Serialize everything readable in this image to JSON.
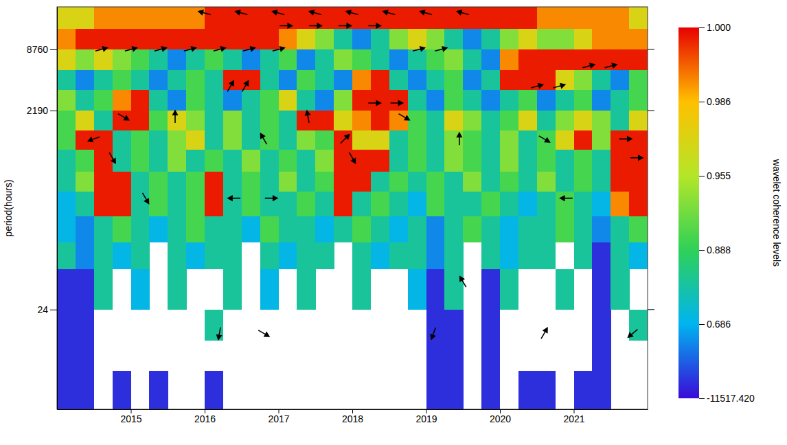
{
  "chart_data": {
    "type": "heatmap",
    "y_label": "period(hours)",
    "colorbar_label": "wavelet coherence levels",
    "log": "y",
    "xlim": [
      2014,
      2022
    ],
    "xticks": [
      2015,
      2016,
      2017,
      2018,
      2019,
      2020,
      2021
    ],
    "ylim": [
      2.5,
      23000
    ],
    "yticks": [
      24,
      2190,
      8760
    ],
    "x_edges": [
      2014,
      2014.25,
      2014.5,
      2014.75,
      2015,
      2015.25,
      2015.5,
      2015.75,
      2016,
      2016.25,
      2016.5,
      2016.75,
      2017,
      2017.25,
      2017.5,
      2017.75,
      2018,
      2018.25,
      2018.5,
      2018.75,
      2019,
      2019.25,
      2019.5,
      2019.75,
      2020,
      2020.25,
      2020.5,
      2020.75,
      2021,
      2021.25,
      2021.5,
      2021.75,
      2022
    ],
    "y_edges": [
      23000,
      14000,
      8760,
      5500,
      3500,
      2190,
      1400,
      900,
      550,
      350,
      200,
      110,
      60,
      24,
      12,
      6,
      2.5
    ],
    "cells": [
      [
        0.97,
        0.97,
        0.99,
        0.99,
        0.99,
        0.99,
        0.99,
        0.99,
        0.998,
        0.998,
        0.998,
        0.998,
        0.998,
        0.998,
        0.998,
        0.998,
        0.998,
        0.998,
        0.998,
        0.998,
        0.998,
        0.998,
        0.998,
        0.998,
        0.998,
        0.998,
        0.99,
        0.99,
        0.99,
        0.99,
        0.99,
        0.97
      ],
      [
        0.99,
        0.998,
        0.998,
        0.998,
        0.998,
        0.998,
        0.998,
        0.998,
        0.998,
        0.998,
        0.998,
        0.998,
        0.99,
        0.97,
        0.93,
        0.8,
        -3000,
        0.8,
        0.93,
        0.97,
        0.93,
        0.8,
        -3000,
        0.8,
        0.93,
        0.97,
        0.93,
        0.93,
        0.97,
        0.99,
        0.99,
        0.99
      ],
      [
        0.97,
        0.93,
        0.97,
        0.93,
        0.9,
        0.8,
        -3000,
        0.8,
        0.9,
        0.8,
        -3000,
        0.8,
        0.9,
        -3000,
        0.8,
        0.93,
        0.9,
        0.8,
        -3000,
        0.8,
        0.9,
        0.93,
        0.8,
        -3000,
        0.99,
        0.998,
        0.998,
        0.998,
        0.998,
        0.998,
        0.998,
        0.998
      ],
      [
        0.8,
        -3000,
        0.8,
        0.9,
        0.8,
        -3000,
        0.8,
        0.9,
        0.8,
        0.998,
        0.998,
        0.8,
        -3000,
        0.9,
        0.8,
        -3000,
        0.99,
        0.998,
        0.8,
        -3000,
        0.8,
        0.9,
        -3000,
        0.8,
        0.998,
        0.998,
        0.998,
        0.97,
        0.93,
        0.8,
        -3000,
        0.9
      ],
      [
        0.93,
        0.8,
        0.9,
        0.99,
        0.998,
        0.8,
        -3000,
        0.9,
        0.8,
        -3000,
        0.8,
        0.9,
        0.97,
        0.8,
        -3000,
        0.93,
        0.998,
        0.998,
        0.998,
        0.8,
        -3000,
        0.9,
        0.8,
        -3000,
        0.8,
        0.9,
        -3000,
        0.8,
        0.9,
        -3000,
        0.8,
        0.9
      ],
      [
        0.9,
        0.97,
        0.8,
        0.998,
        0.998,
        0.9,
        0.97,
        0.93,
        0.8,
        0.93,
        0.8,
        0.9,
        0.8,
        0.998,
        0.998,
        0.97,
        0.99,
        0.998,
        0.99,
        0.9,
        0.8,
        0.97,
        0.93,
        0.8,
        0.9,
        0.97,
        0.8,
        0.93,
        0.97,
        0.93,
        0.8,
        0.97
      ],
      [
        0.9,
        0.998,
        0.998,
        0.8,
        0.9,
        0.8,
        0.93,
        0.97,
        0.8,
        0.93,
        0.8,
        0.9,
        0.8,
        0.93,
        0.9,
        0.998,
        0.97,
        0.97,
        0.8,
        0.9,
        0.8,
        0.93,
        0.9,
        0.8,
        0.93,
        0.8,
        0.9,
        0.97,
        0.998,
        0.93,
        0.998,
        0.998
      ],
      [
        0.8,
        0.9,
        0.998,
        0.8,
        0.9,
        0.8,
        0.93,
        0.8,
        0.9,
        0.8,
        0.93,
        0.8,
        0.9,
        0.8,
        0.93,
        0.998,
        0.998,
        0.998,
        0.8,
        0.9,
        0.8,
        0.93,
        0.9,
        0.8,
        0.93,
        0.8,
        0.9,
        0.8,
        0.9,
        0.8,
        0.998,
        0.998
      ],
      [
        0.8,
        0.93,
        0.998,
        0.998,
        0.8,
        0.9,
        0.8,
        0.9,
        0.998,
        0.8,
        0.9,
        0.8,
        0.93,
        0.8,
        0.9,
        0.998,
        0.998,
        0.8,
        0.9,
        0.8,
        0.9,
        0.8,
        0.93,
        0.8,
        0.9,
        0.8,
        0.93,
        0.8,
        0.9,
        0.8,
        0.998,
        0.998
      ],
      [
        0.7,
        0.8,
        0.998,
        0.998,
        0.8,
        0.9,
        0.8,
        0.9,
        0.998,
        0.8,
        0.9,
        0.8,
        0.8,
        0.9,
        0.8,
        0.998,
        0.8,
        0.9,
        0.8,
        0.7,
        0.9,
        0.8,
        0.8,
        0.9,
        0.8,
        0.7,
        0.8,
        0.9,
        0.8,
        0.7,
        0.99,
        0.998
      ],
      [
        0.7,
        -3000,
        0.8,
        0.9,
        0.8,
        0.7,
        0.8,
        0.9,
        0.8,
        0.8,
        0.7,
        0.9,
        0.8,
        0.8,
        0.7,
        0.8,
        0.9,
        0.8,
        0.7,
        0.8,
        -3000,
        0.8,
        0.9,
        0.8,
        0.7,
        0.8,
        0.8,
        0.9,
        0.8,
        -3000,
        0.8,
        0.9
      ],
      [
        0.8,
        -3000,
        0.8,
        0.7,
        0.8,
        null,
        0.8,
        0.7,
        0.8,
        0.8,
        null,
        0.8,
        0.7,
        0.8,
        0.8,
        null,
        0.8,
        0.7,
        0.8,
        0.8,
        -3000,
        0.8,
        null,
        0.8,
        0.7,
        0.8,
        0.8,
        null,
        0.8,
        -9000,
        0.8,
        0.7
      ],
      [
        -9000,
        -9000,
        0.8,
        null,
        0.7,
        null,
        0.8,
        null,
        null,
        0.8,
        null,
        0.7,
        null,
        0.8,
        null,
        null,
        0.8,
        null,
        null,
        0.7,
        -9000,
        0.8,
        null,
        -9000,
        0.8,
        null,
        null,
        0.8,
        null,
        -9000,
        0.8,
        null
      ],
      [
        -9000,
        -9000,
        null,
        null,
        null,
        null,
        null,
        null,
        0.8,
        null,
        null,
        null,
        null,
        null,
        null,
        null,
        null,
        null,
        null,
        null,
        -9000,
        -9000,
        null,
        -9000,
        null,
        null,
        null,
        null,
        null,
        -9000,
        null,
        0.8
      ],
      [
        -9000,
        -9000,
        null,
        null,
        null,
        null,
        null,
        null,
        null,
        null,
        null,
        null,
        null,
        null,
        null,
        null,
        null,
        null,
        null,
        null,
        -9000,
        -9000,
        null,
        -9000,
        null,
        null,
        null,
        null,
        null,
        -9000,
        null,
        null
      ],
      [
        -9000,
        -9000,
        null,
        -9000,
        null,
        -9000,
        null,
        null,
        -9000,
        null,
        null,
        null,
        null,
        null,
        null,
        null,
        null,
        null,
        null,
        null,
        -9000,
        -9000,
        null,
        -9000,
        null,
        -9000,
        -9000,
        null,
        -9000,
        -9000,
        null,
        null
      ]
    ],
    "colorbar": {
      "range": [
        -11517.42,
        1
      ],
      "ticks": [
        {
          "value": -11517.42,
          "label": "-11517.420"
        },
        0.686,
        0.888,
        0.955,
        0.986,
        {
          "value": 1,
          "label": "1.000"
        }
      ]
    },
    "arrows": [
      {
        "x": 2016.0,
        "period": 20000,
        "angle": 165
      },
      {
        "x": 2016.5,
        "period": 20000,
        "angle": 165
      },
      {
        "x": 2017.0,
        "period": 20000,
        "angle": 165
      },
      {
        "x": 2017.5,
        "period": 20000,
        "angle": 165
      },
      {
        "x": 2018.0,
        "period": 20000,
        "angle": 165
      },
      {
        "x": 2018.5,
        "period": 20000,
        "angle": 165
      },
      {
        "x": 2019.0,
        "period": 20000,
        "angle": 165
      },
      {
        "x": 2019.5,
        "period": 20000,
        "angle": 165
      },
      {
        "x": 2017.1,
        "period": 15000,
        "angle": 0
      },
      {
        "x": 2017.5,
        "period": 15000,
        "angle": 0
      },
      {
        "x": 2017.9,
        "period": 15000,
        "angle": 0
      },
      {
        "x": 2018.3,
        "period": 15000,
        "angle": 0
      },
      {
        "x": 2014.6,
        "period": 8760,
        "angle": 15
      },
      {
        "x": 2015.0,
        "period": 8760,
        "angle": 15
      },
      {
        "x": 2015.4,
        "period": 8760,
        "angle": 15
      },
      {
        "x": 2015.8,
        "period": 8760,
        "angle": 15
      },
      {
        "x": 2016.2,
        "period": 8760,
        "angle": 15
      },
      {
        "x": 2016.6,
        "period": 8760,
        "angle": 15
      },
      {
        "x": 2017.0,
        "period": 8760,
        "angle": 15
      },
      {
        "x": 2018.9,
        "period": 8760,
        "angle": 15
      },
      {
        "x": 2019.2,
        "period": 8760,
        "angle": 15
      },
      {
        "x": 2021.2,
        "period": 6000,
        "angle": 15
      },
      {
        "x": 2021.5,
        "period": 6000,
        "angle": 15
      },
      {
        "x": 2016.35,
        "period": 3800,
        "angle": 60
      },
      {
        "x": 2016.55,
        "period": 3800,
        "angle": 60
      },
      {
        "x": 2020.5,
        "period": 3800,
        "angle": 15
      },
      {
        "x": 2020.8,
        "period": 3800,
        "angle": 15
      },
      {
        "x": 2018.3,
        "period": 2600,
        "angle": 0
      },
      {
        "x": 2018.6,
        "period": 2600,
        "angle": 0
      },
      {
        "x": 2014.9,
        "period": 1900,
        "angle": -30
      },
      {
        "x": 2015.6,
        "period": 1900,
        "angle": 90
      },
      {
        "x": 2017.4,
        "period": 1900,
        "angle": 100
      },
      {
        "x": 2018.7,
        "period": 1900,
        "angle": -30
      },
      {
        "x": 2014.5,
        "period": 1150,
        "angle": 200
      },
      {
        "x": 2016.8,
        "period": 1150,
        "angle": 120
      },
      {
        "x": 2017.9,
        "period": 1150,
        "angle": 45
      },
      {
        "x": 2019.45,
        "period": 1150,
        "angle": 90
      },
      {
        "x": 2020.6,
        "period": 1150,
        "angle": -30
      },
      {
        "x": 2021.7,
        "period": 1150,
        "angle": 0
      },
      {
        "x": 2014.75,
        "period": 750,
        "angle": -60
      },
      {
        "x": 2018.0,
        "period": 750,
        "angle": -60
      },
      {
        "x": 2021.85,
        "period": 750,
        "angle": 0
      },
      {
        "x": 2015.2,
        "period": 300,
        "angle": -60
      },
      {
        "x": 2016.4,
        "period": 300,
        "angle": 180
      },
      {
        "x": 2016.9,
        "period": 300,
        "angle": 0
      },
      {
        "x": 2020.9,
        "period": 300,
        "angle": 180
      },
      {
        "x": 2019.5,
        "period": 45,
        "angle": 120
      },
      {
        "x": 2016.2,
        "period": 14,
        "angle": -100
      },
      {
        "x": 2016.8,
        "period": 14,
        "angle": -30
      },
      {
        "x": 2019.1,
        "period": 14,
        "angle": -110
      },
      {
        "x": 2020.6,
        "period": 14,
        "angle": 60
      },
      {
        "x": 2021.8,
        "period": 14,
        "angle": 220
      }
    ]
  }
}
